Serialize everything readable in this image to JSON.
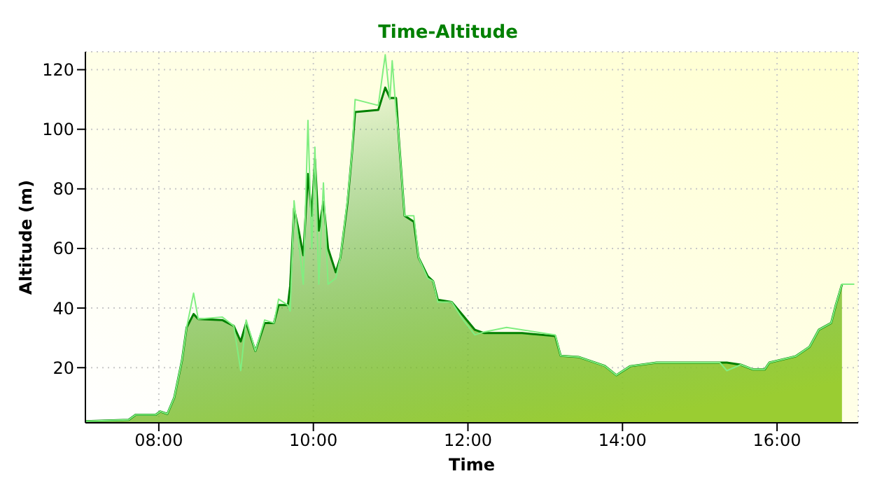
{
  "chart_data": {
    "type": "area",
    "title": "Time-Altitude",
    "xlabel": "Time",
    "ylabel": "Altitude (m)",
    "xlim": [
      7.05,
      17.05
    ],
    "ylim": [
      1.5,
      126
    ],
    "xticks": [
      {
        "value": 8,
        "label": "08:00"
      },
      {
        "value": 10,
        "label": "10:00"
      },
      {
        "value": 12,
        "label": "12:00"
      },
      {
        "value": 14,
        "label": "14:00"
      },
      {
        "value": 16,
        "label": "16:00"
      }
    ],
    "yticks": [
      20,
      40,
      60,
      80,
      100,
      120
    ],
    "grid": true,
    "series": [
      {
        "color": "#008000",
        "x": [
          7.05,
          7.61,
          7.7,
          7.96,
          8.02,
          8.11,
          8.2,
          8.3,
          8.36,
          8.45,
          8.51,
          8.82,
          8.97,
          9.06,
          9.13,
          9.25,
          9.37,
          9.49,
          9.55,
          9.67,
          9.7,
          9.75,
          9.81,
          9.87,
          9.93,
          9.98,
          10.02,
          10.07,
          10.13,
          10.19,
          10.29,
          10.35,
          10.44,
          10.5,
          10.54,
          10.84,
          10.93,
          10.99,
          11.07,
          11.1,
          11.18,
          11.3,
          11.36,
          11.48,
          11.55,
          11.61,
          11.79,
          11.94,
          12.09,
          12.21,
          12.7,
          13.13,
          13.2,
          13.43,
          13.77,
          13.92,
          14.1,
          14.44,
          15.26,
          15.35,
          15.53,
          15.69,
          15.84,
          15.9,
          16.24,
          16.42,
          16.54,
          16.7,
          16.76,
          16.84
        ],
        "values": [
          2,
          2.5,
          4.2,
          4.2,
          5.3,
          4.5,
          10,
          22.5,
          33.5,
          38,
          36.3,
          36,
          34,
          28.8,
          35,
          25.6,
          35,
          35,
          41,
          41,
          47.5,
          73.4,
          66,
          57.7,
          85,
          71,
          90,
          66,
          75.7,
          60,
          52,
          57,
          75,
          92,
          105.8,
          106.5,
          114,
          110.5,
          110.5,
          99,
          71,
          69,
          57,
          50.7,
          49,
          42.8,
          42,
          37.4,
          32.7,
          31.6,
          31.6,
          30.6,
          24,
          23.6,
          20.6,
          17.5,
          20.5,
          21.7,
          21.7,
          21.7,
          21,
          19.4,
          19.4,
          21.7,
          23.8,
          27,
          32.7,
          35,
          41,
          47.9
        ]
      },
      {
        "type": "line",
        "color": "#80ee80",
        "x": [
          7.05,
          7.61,
          7.7,
          7.96,
          8.02,
          8.11,
          8.2,
          8.3,
          8.36,
          8.45,
          8.51,
          8.82,
          8.97,
          9.06,
          9.13,
          9.25,
          9.37,
          9.49,
          9.55,
          9.67,
          9.7,
          9.75,
          9.81,
          9.87,
          9.93,
          9.98,
          10.02,
          10.07,
          10.13,
          10.19,
          10.29,
          10.35,
          10.44,
          10.5,
          10.54,
          10.84,
          10.93,
          10.99,
          11.02,
          11.07,
          11.1,
          11.18,
          11.3,
          11.36,
          11.48,
          11.55,
          11.61,
          11.79,
          11.94,
          12.09,
          12.21,
          12.5,
          13.13,
          13.2,
          13.43,
          13.77,
          13.92,
          14.1,
          14.44,
          15.26,
          15.35,
          15.53,
          15.69,
          15.84,
          15.9,
          16.24,
          16.42,
          16.54,
          16.7,
          16.76,
          16.84,
          17.0
        ],
        "values": [
          2,
          2.5,
          4.2,
          4.2,
          5.3,
          4.5,
          10,
          22.5,
          33.5,
          45,
          36.3,
          37,
          34,
          19,
          36,
          25.6,
          36,
          35,
          43,
          41,
          39,
          76,
          62,
          48,
          103,
          60,
          94,
          48,
          82,
          48,
          50,
          57,
          76,
          92,
          110,
          108,
          125,
          110,
          123,
          106,
          99,
          71,
          71,
          57,
          50,
          49,
          42,
          42,
          36,
          31,
          32,
          33.5,
          31,
          24,
          23.6,
          20.6,
          17.5,
          20.5,
          21.7,
          21.7,
          19,
          21,
          19.4,
          19.4,
          21.7,
          23.8,
          27,
          32.7,
          35,
          41,
          48,
          48
        ]
      }
    ]
  }
}
